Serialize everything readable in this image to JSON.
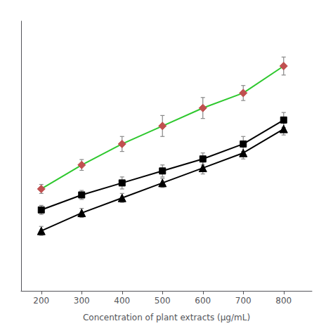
{
  "chart_data": {
    "type": "line",
    "x": [
      200,
      300,
      400,
      500,
      600,
      700,
      800
    ],
    "xlabel": "Concentration of plant extracts (μg/mL)",
    "xlim": [
      150,
      870
    ],
    "xticks": [
      200,
      300,
      400,
      500,
      600,
      700,
      800
    ],
    "ylim": [
      -5,
      85
    ],
    "grid": false,
    "tick_labels": "x",
    "series": [
      {
        "color": "#2ec82e",
        "colors": [
          "#c05050",
          "#c05050",
          "#c05050",
          "#c05050",
          "#c05050",
          "#c05050",
          "#c05050"
        ],
        "marker": "diamond",
        "values": [
          29,
          37,
          44,
          50,
          56,
          61,
          70
        ],
        "errors": [
          1.5,
          1.8,
          2.5,
          3.5,
          3.5,
          2.5,
          3.0
        ]
      },
      {
        "color": "#000000",
        "marker": "square",
        "values": [
          22,
          27,
          31,
          35,
          39,
          44,
          52
        ],
        "errors": [
          1.5,
          1.5,
          2.0,
          2.0,
          2.0,
          2.5,
          2.5
        ]
      },
      {
        "color": "#000000",
        "marker": "triangle",
        "values": [
          15,
          21,
          26,
          31,
          36,
          41,
          49
        ],
        "errors": [
          1.5,
          1.5,
          1.5,
          1.5,
          2.0,
          2.0,
          2.0
        ]
      }
    ]
  }
}
